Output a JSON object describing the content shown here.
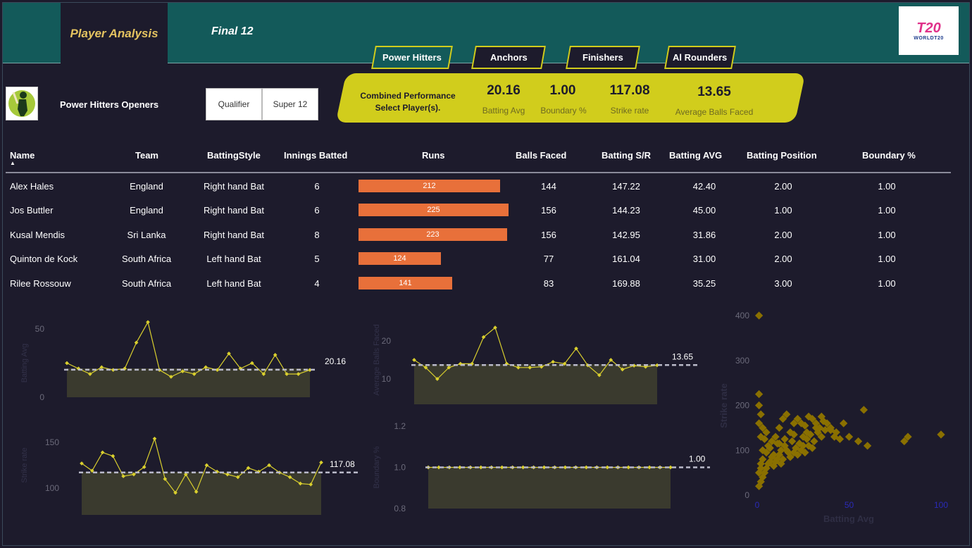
{
  "header": {
    "active_tab": "Player Analysis",
    "other_tab": "Final 12",
    "logo_mark": "T20",
    "logo_text": "WORLDT20"
  },
  "categories": [
    {
      "label": "Power Hitters",
      "active": true
    },
    {
      "label": "Anchors",
      "active": false
    },
    {
      "label": "Finishers",
      "active": false
    },
    {
      "label": "Al Rounders",
      "active": false
    }
  ],
  "section": {
    "title": "Power Hitters Openers",
    "stages": [
      "Qualifier",
      "Super 12"
    ]
  },
  "kpi": {
    "label_line1": "Combined Performance",
    "label_line2": "Select Player(s).",
    "batting_avg": "20.16",
    "batting_avg_label": "Batting Avg",
    "boundary": "1.00",
    "boundary_label": "Boundary %",
    "strike_rate": "117.08",
    "strike_rate_label": "Strike rate",
    "balls_faced": "13.65",
    "balls_faced_label": "Average Balls Faced"
  },
  "table": {
    "columns": [
      "Name",
      "Team",
      "BattingStyle",
      "Innings Batted",
      "Runs",
      "Balls Faced",
      "Batting S/R",
      "Batting AVG",
      "Batting Position",
      "Boundary %"
    ],
    "sort_icon": "sort-ascending-icon",
    "rows": [
      {
        "name": "Alex Hales",
        "team": "England",
        "style": "Right hand Bat",
        "innings": "6",
        "runs": "212",
        "balls": "144",
        "sr": "147.22",
        "avg": "42.40",
        "pos": "2.00",
        "boundary": "1.00"
      },
      {
        "name": "Jos Buttler",
        "team": "England",
        "style": "Right hand Bat",
        "innings": "6",
        "runs": "225",
        "balls": "156",
        "sr": "144.23",
        "avg": "45.00",
        "pos": "1.00",
        "boundary": "1.00"
      },
      {
        "name": "Kusal Mendis",
        "team": "Sri Lanka",
        "style": "Right hand Bat",
        "innings": "8",
        "runs": "223",
        "balls": "156",
        "sr": "142.95",
        "avg": "31.86",
        "pos": "2.00",
        "boundary": "1.00"
      },
      {
        "name": "Quinton de Kock",
        "team": "South Africa",
        "style": "Left hand Bat",
        "innings": "5",
        "runs": "124",
        "balls": "77",
        "sr": "161.04",
        "avg": "31.00",
        "pos": "2.00",
        "boundary": "1.00"
      },
      {
        "name": "Rilee Rossouw",
        "team": "South Africa",
        "style": "Left hand Bat",
        "innings": "4",
        "runs": "141",
        "balls": "83",
        "sr": "169.88",
        "avg": "35.25",
        "pos": "3.00",
        "boundary": "1.00"
      }
    ]
  },
  "colors": {
    "bg": "#1d1b2c",
    "header": "#135a5a",
    "accent": "#d1cd1c",
    "bar": "#e8703a",
    "line": "#d9cf2e",
    "area": "#3a3a2e",
    "scatter": "#8a7000"
  },
  "chart_data": [
    {
      "type": "area",
      "title": "",
      "ylabel": "Batting Avg",
      "yticks": [
        "50",
        "0"
      ],
      "ylim": [
        0,
        50
      ],
      "reference": 20.16,
      "reference_label": "20.16",
      "values": [
        25,
        21,
        17,
        22,
        20,
        21,
        40,
        55,
        20,
        15,
        19,
        17,
        22,
        20,
        32,
        21,
        25,
        17,
        31,
        17,
        17,
        20
      ]
    },
    {
      "type": "area",
      "title": "",
      "ylabel": "Average Balls Faced",
      "yticks": [
        "20",
        "10"
      ],
      "ylim": [
        5,
        25
      ],
      "reference": 13.65,
      "reference_label": "13.65",
      "values": [
        15,
        13,
        10,
        13,
        14,
        14,
        21,
        23.5,
        14,
        13,
        13,
        13.2,
        14.5,
        14,
        18,
        13.6,
        11,
        15,
        12.5,
        13.5,
        13.2,
        13.6
      ]
    },
    {
      "type": "area",
      "title": "",
      "ylabel": "Strike rate",
      "yticks": [
        "150",
        "100"
      ],
      "ylim": [
        80,
        170
      ],
      "reference": 117.08,
      "reference_label": "117.08",
      "values": [
        127,
        119,
        139,
        135,
        113,
        115,
        123,
        154,
        110,
        95,
        115,
        96,
        125,
        118,
        115,
        112,
        122,
        118,
        125,
        117,
        112,
        105,
        104,
        128
      ]
    },
    {
      "type": "area",
      "title": "",
      "ylabel": "Boundary %",
      "yticks": [
        "1.2",
        "1.0",
        "0.8"
      ],
      "ylim": [
        0.8,
        1.2
      ],
      "reference": 1.0,
      "reference_label": "1.00",
      "values": [
        1,
        1,
        1,
        1,
        1,
        1,
        1,
        1,
        1,
        1,
        1,
        1,
        1,
        1,
        1,
        1,
        1,
        1,
        1,
        1,
        1,
        1,
        1,
        1
      ]
    },
    {
      "type": "scatter",
      "xlabel": "Batting Avg",
      "ylabel": "Strike rate",
      "xlim": [
        0,
        100
      ],
      "ylim": [
        0,
        400
      ],
      "xticks": [
        "0",
        "50",
        "100"
      ],
      "yticks": [
        "400",
        "300",
        "200",
        "100",
        "0"
      ],
      "points": [
        [
          1,
          400
        ],
        [
          1,
          225
        ],
        [
          1,
          200
        ],
        [
          2,
          180
        ],
        [
          1,
          160
        ],
        [
          3,
          150
        ],
        [
          2,
          130
        ],
        [
          4,
          125
        ],
        [
          5,
          140
        ],
        [
          6,
          110
        ],
        [
          8,
          120
        ],
        [
          10,
          130
        ],
        [
          12,
          150
        ],
        [
          14,
          170
        ],
        [
          16,
          180
        ],
        [
          18,
          140
        ],
        [
          20,
          160
        ],
        [
          22,
          170
        ],
        [
          24,
          160
        ],
        [
          26,
          155
        ],
        [
          28,
          175
        ],
        [
          30,
          170
        ],
        [
          32,
          160
        ],
        [
          34,
          150
        ],
        [
          36,
          165
        ],
        [
          38,
          160
        ],
        [
          40,
          150
        ],
        [
          42,
          130
        ],
        [
          45,
          125
        ],
        [
          50,
          130
        ],
        [
          55,
          120
        ],
        [
          60,
          110
        ],
        [
          58,
          190
        ],
        [
          80,
          120
        ],
        [
          82,
          130
        ],
        [
          100,
          135
        ],
        [
          3,
          100
        ],
        [
          5,
          95
        ],
        [
          7,
          105
        ],
        [
          9,
          90
        ],
        [
          11,
          115
        ],
        [
          13,
          100
        ],
        [
          15,
          110
        ],
        [
          17,
          95
        ],
        [
          19,
          120
        ],
        [
          21,
          105
        ],
        [
          23,
          115
        ],
        [
          25,
          110
        ],
        [
          27,
          125
        ],
        [
          29,
          135
        ],
        [
          31,
          120
        ],
        [
          33,
          140
        ],
        [
          35,
          130
        ],
        [
          37,
          145
        ],
        [
          2,
          60
        ],
        [
          3,
          80
        ],
        [
          4,
          50
        ],
        [
          6,
          70
        ],
        [
          8,
          85
        ],
        [
          10,
          75
        ],
        [
          12,
          90
        ],
        [
          14,
          80
        ],
        [
          16,
          100
        ],
        [
          18,
          85
        ],
        [
          20,
          95
        ],
        [
          22,
          90
        ],
        [
          24,
          100
        ],
        [
          26,
          95
        ],
        [
          28,
          110
        ],
        [
          30,
          105
        ],
        [
          1,
          20
        ],
        [
          2,
          30
        ],
        [
          3,
          40
        ],
        [
          1,
          50
        ],
        [
          2,
          70
        ],
        [
          5,
          60
        ],
        [
          7,
          75
        ],
        [
          9,
          65
        ],
        [
          11,
          80
        ],
        [
          13,
          70
        ],
        [
          40,
          145
        ],
        [
          43,
          140
        ],
        [
          47,
          160
        ],
        [
          35,
          175
        ],
        [
          25,
          130
        ],
        [
          15,
          125
        ],
        [
          12,
          115
        ],
        [
          20,
          135
        ],
        [
          27,
          140
        ],
        [
          32,
          150
        ]
      ]
    }
  ]
}
